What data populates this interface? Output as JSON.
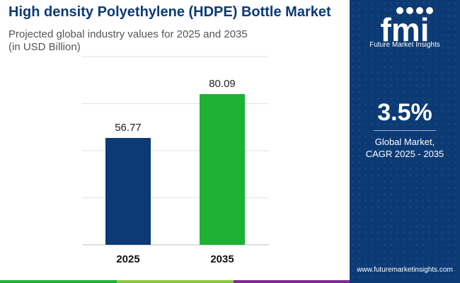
{
  "title": "High density Polyethylene (HDPE) Bottle Market",
  "subtitle_line1": "Projected global industry values for 2025 and 2035",
  "subtitle_line2": "(in USD Billion)",
  "chart_data": {
    "type": "bar",
    "categories": [
      "2025",
      "2035"
    ],
    "values": [
      56.77,
      80.09
    ],
    "value_labels": [
      "56.77",
      "80.09"
    ],
    "bar_colors": [
      "#0b3a75",
      "#1fb136"
    ],
    "ylim": [
      0,
      100
    ],
    "grid": true,
    "xlabel": "",
    "ylabel": ""
  },
  "sidebar": {
    "logo_text": "fmi",
    "logo_subtitle": "Future Market Insights",
    "cagr_value": "3.5%",
    "cagr_label_line1": "Global Market,",
    "cagr_label_line2": "CAGR 2025 - 2035",
    "website": "www.futuremarketinsights.com"
  },
  "colors": {
    "brand_navy": "#0b3a75",
    "accent_green": "#1fb136",
    "strip": [
      "#1fb136",
      "#8dc63f",
      "#f7941d",
      "#7b2d8e",
      "#0b3a75"
    ]
  }
}
